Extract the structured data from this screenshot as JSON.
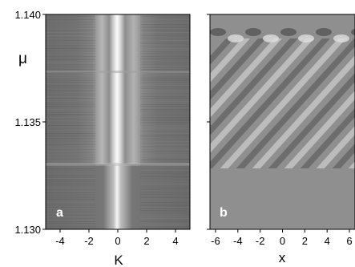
{
  "figure": {
    "panels": [
      {
        "label": "a",
        "x_axis_label": "K",
        "y_axis_label": "μ",
        "x_ticks": [
          "-4",
          "-2",
          "0",
          "2",
          "4"
        ],
        "x_tick_values": [
          -4,
          -2,
          0,
          2,
          4
        ],
        "xlim": [
          -5,
          5
        ],
        "y_ticks": [
          "1.140",
          "1.135",
          "1.130"
        ],
        "y_tick_values": [
          1.14,
          1.135,
          1.13
        ],
        "ylim": [
          1.13,
          1.14
        ]
      },
      {
        "label": "b",
        "x_axis_label": "x",
        "x_ticks": [
          "-6",
          "-4",
          "-2",
          "0",
          "2",
          "4",
          "6"
        ],
        "x_tick_values": [
          -6,
          -4,
          -2,
          0,
          2,
          4,
          6
        ],
        "xlim": [
          -6.5,
          6.5
        ],
        "ylim": [
          1.13,
          1.14
        ]
      }
    ]
  }
}
